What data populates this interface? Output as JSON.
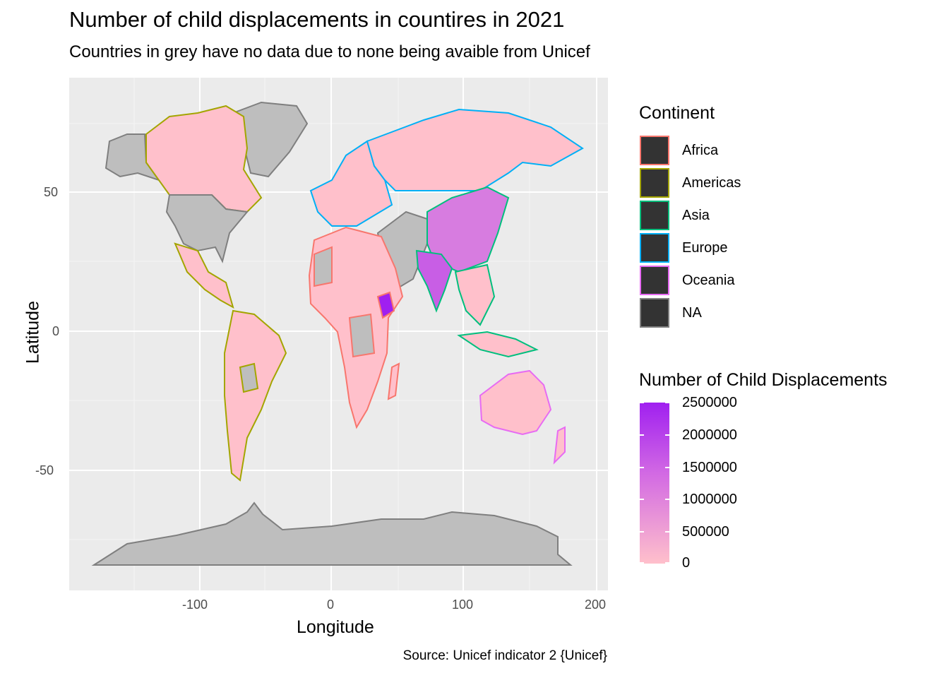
{
  "title": "Number of child displacements in countires in 2021",
  "subtitle": "Countries in grey have no data due to none being avaible from Unicef",
  "caption": "Source: Unicef indicator 2 {Unicef}",
  "axes": {
    "x_title": "Longitude",
    "y_title": "Latitude",
    "x_ticks": [
      "-100",
      "0",
      "100",
      "200"
    ],
    "y_ticks": [
      "50",
      "0",
      "-50"
    ]
  },
  "legend_continent": {
    "title": "Continent",
    "items": [
      {
        "label": "Africa",
        "color": "#f8766d"
      },
      {
        "label": "Americas",
        "color": "#a3a500"
      },
      {
        "label": "Asia",
        "color": "#00bf7d"
      },
      {
        "label": "Europe",
        "color": "#00b0f6"
      },
      {
        "label": "Oceania",
        "color": "#e76bf3"
      },
      {
        "label": "NA",
        "color": "#7f7f7f"
      }
    ]
  },
  "legend_fill": {
    "title": "Number of Child Displacements",
    "labels": [
      "2500000",
      "2000000",
      "1500000",
      "1000000",
      "500000",
      "0"
    ],
    "low_color": "#ffc0cb",
    "high_color": "#a020f0"
  },
  "colors": {
    "panel": "#ebebeb",
    "no_data_fill": "#bebebe",
    "low_fill": "#ffc0cb"
  },
  "chart_data": {
    "type": "choropleth",
    "xlim": [
      -180,
      200
    ],
    "ylim": [
      -90,
      85
    ],
    "regions": [
      {
        "name": "Canada",
        "continent": "Americas",
        "value": 0
      },
      {
        "name": "Greenland",
        "continent": "NA",
        "value": null
      },
      {
        "name": "Alaska",
        "continent": "NA",
        "value": null
      },
      {
        "name": "USA",
        "continent": "NA",
        "value": null
      },
      {
        "name": "Mexico",
        "continent": "Americas",
        "value": 0
      },
      {
        "name": "Brazil",
        "continent": "Americas",
        "value": 0
      },
      {
        "name": "Argentina",
        "continent": "Americas",
        "value": 0
      },
      {
        "name": "Russia",
        "continent": "Europe",
        "value": 0
      },
      {
        "name": "China",
        "continent": "Asia",
        "value": 1300000
      },
      {
        "name": "India",
        "continent": "Asia",
        "value": 1300000
      },
      {
        "name": "Ethiopia",
        "continent": "Africa",
        "value": 2500000
      },
      {
        "name": "Australia",
        "continent": "Oceania",
        "value": 0
      },
      {
        "name": "Antarctica",
        "continent": "NA",
        "value": null
      }
    ]
  }
}
